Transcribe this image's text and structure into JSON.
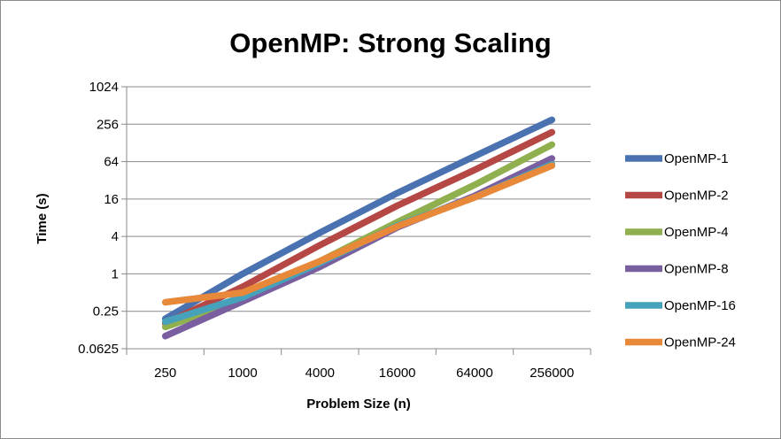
{
  "chart_data": {
    "type": "line",
    "title": "OpenMP: Strong Scaling",
    "xlabel": "Problem Size (n)",
    "ylabel": "Time (s)",
    "x_scale": "log",
    "y_scale": "log2",
    "categories": [
      "250",
      "1000",
      "4000",
      "16000",
      "64000",
      "256000"
    ],
    "x": [
      250,
      1000,
      4000,
      16000,
      64000,
      256000
    ],
    "y_ticks": [
      "0.0625",
      "0.25",
      "1",
      "4",
      "16",
      "64",
      "256",
      "1024"
    ],
    "ylim": [
      0.0625,
      1024
    ],
    "grid": true,
    "legend_position": "right",
    "series": [
      {
        "name": "OpenMP-1",
        "color": "#4a72b0",
        "values": [
          0.19,
          1.0,
          4.6,
          20,
          78,
          300
        ]
      },
      {
        "name": "OpenMP-2",
        "color": "#b54744",
        "values": [
          0.16,
          0.62,
          2.9,
          12.5,
          47,
          190
        ]
      },
      {
        "name": "OpenMP-4",
        "color": "#90b050",
        "values": [
          0.14,
          0.38,
          1.6,
          6.8,
          27,
          120
        ]
      },
      {
        "name": "OpenMP-8",
        "color": "#7a5fa0",
        "values": [
          0.1,
          0.36,
          1.3,
          5.6,
          18,
          72
        ]
      },
      {
        "name": "OpenMP-16",
        "color": "#45a2ba",
        "values": [
          0.17,
          0.42,
          1.5,
          6.0,
          17,
          58
        ]
      },
      {
        "name": "OpenMP-24",
        "color": "#e8893a",
        "values": [
          0.35,
          0.5,
          1.6,
          5.8,
          17,
          55
        ]
      }
    ]
  }
}
